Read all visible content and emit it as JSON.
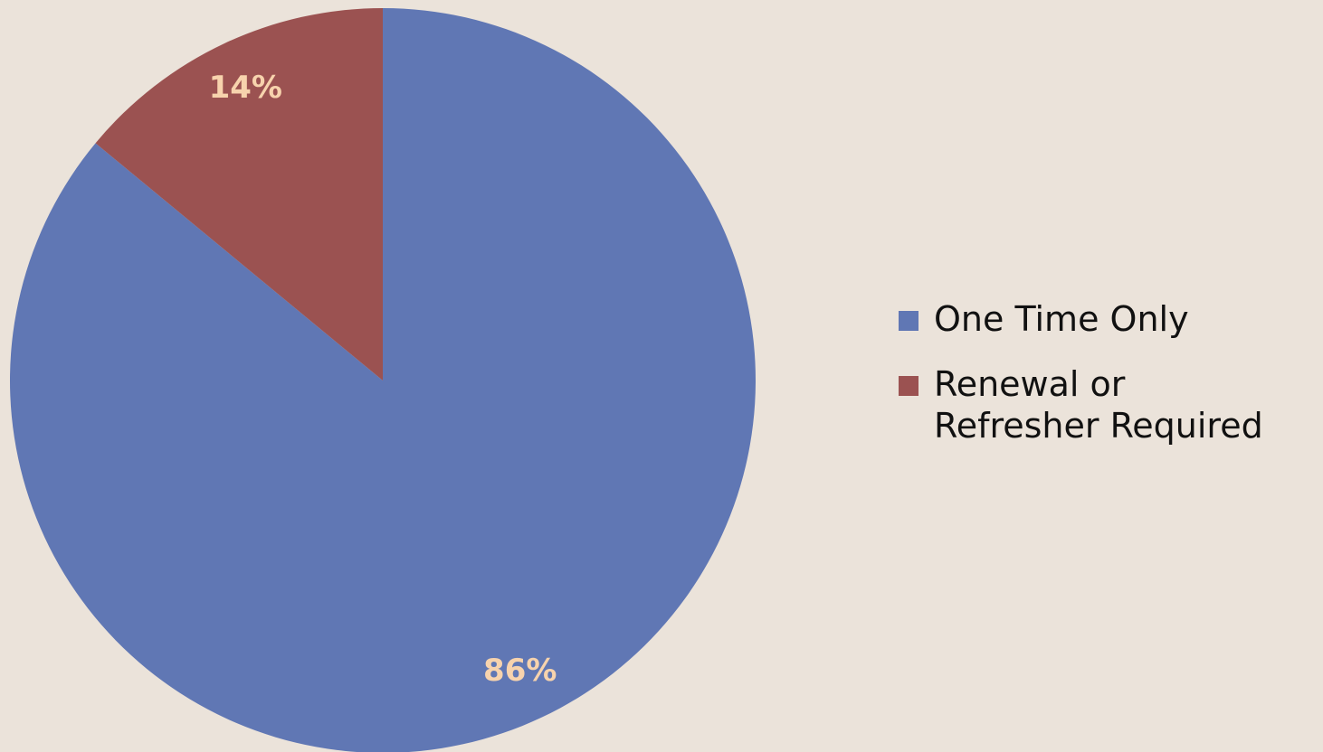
{
  "chart_data": {
    "type": "pie",
    "categories": [
      "One Time Only",
      "Renewal or Refresher Required"
    ],
    "values": [
      86,
      14
    ],
    "value_labels": [
      "86%",
      "14%"
    ],
    "colors": [
      "#6077b4",
      "#9b5251"
    ],
    "legend": "right"
  }
}
